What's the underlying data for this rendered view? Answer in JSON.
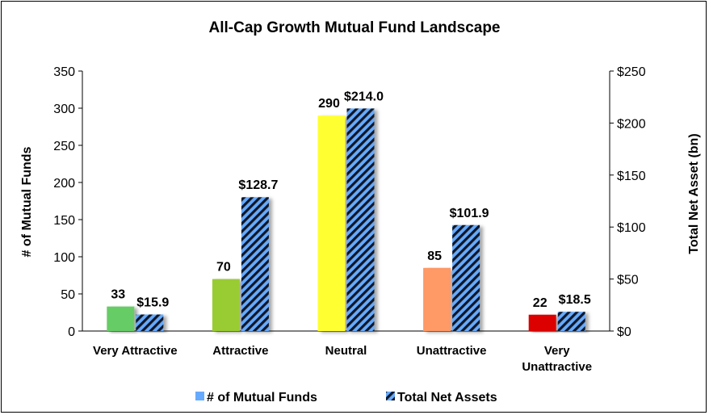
{
  "chart_data": {
    "type": "bar",
    "title": "All-Cap Growth Mutual Fund Landscape",
    "categories": [
      "Very Attractive",
      "Attractive",
      "Neutral",
      "Unattractive",
      "Very Unattractive"
    ],
    "category_lines": [
      [
        "Very Attractive"
      ],
      [
        "Attractive"
      ],
      [
        "Neutral"
      ],
      [
        "Unattractive"
      ],
      [
        "Very",
        "Unattractive"
      ]
    ],
    "series": [
      {
        "name": "# of Mutual Funds",
        "axis": "left",
        "values": [
          33,
          70,
          290,
          85,
          22
        ],
        "labels": [
          "33",
          "70",
          "290",
          "85",
          "22"
        ],
        "colors": [
          "#66cc66",
          "#99cc33",
          "#ffff33",
          "#ff9966",
          "#dd0000"
        ]
      },
      {
        "name": "Total Net Assets",
        "axis": "right",
        "values": [
          15.9,
          128.7,
          214.0,
          101.9,
          18.5
        ],
        "labels": [
          "$15.9",
          "$128.7",
          "$214.0",
          "$101.9",
          "$18.5"
        ],
        "pattern": "hatched",
        "colors": [
          "#66aaff",
          "#101828"
        ]
      }
    ],
    "ylabel": "# of Mutual Funds",
    "ylim": [
      0,
      350
    ],
    "yticks": [
      "0",
      "50",
      "100",
      "150",
      "200",
      "250",
      "300",
      "350"
    ],
    "y2label": "Total Net Asset (bn)",
    "y2lim": [
      0,
      250
    ],
    "y2ticks": [
      "$0",
      "$50",
      "$100",
      "$150",
      "$200",
      "$250"
    ],
    "legend": {
      "placement": "bottom",
      "items": [
        "# of Mutual Funds",
        "Total Net Assets"
      ],
      "swatch_colors": [
        "#66aaff",
        "#101828"
      ]
    },
    "grid": false
  }
}
